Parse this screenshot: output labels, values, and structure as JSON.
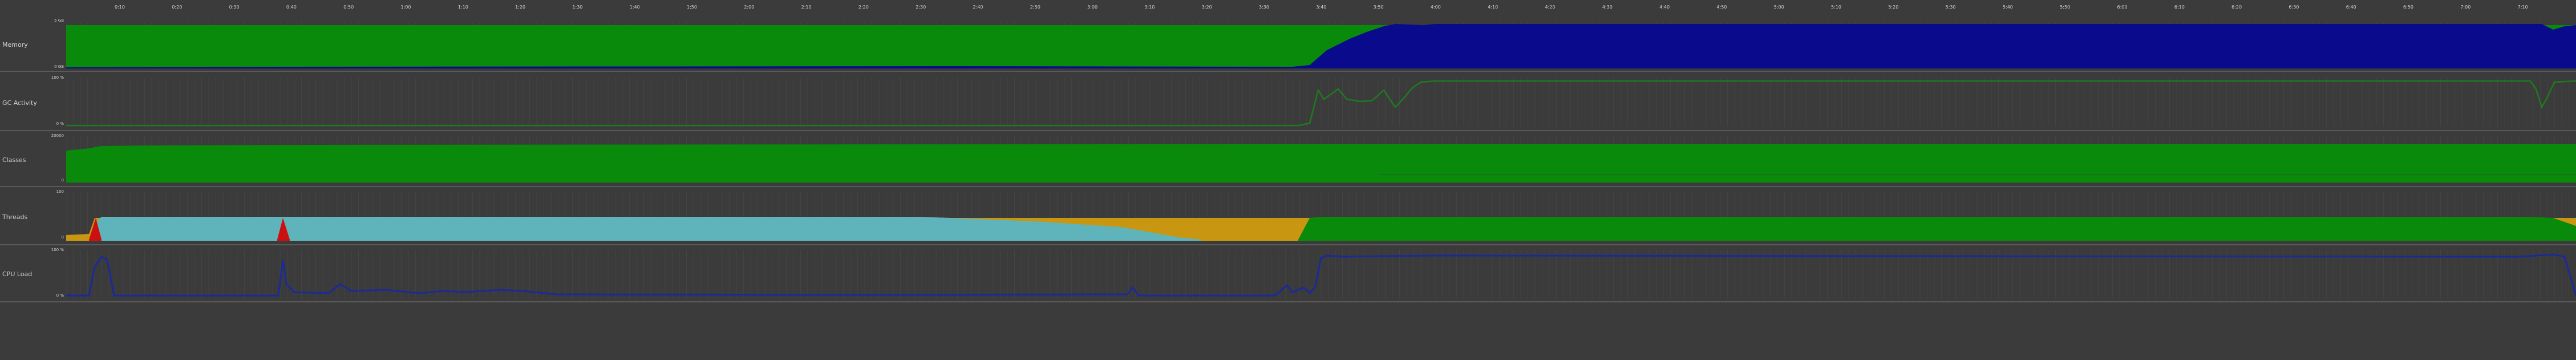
{
  "timeline": {
    "ticks": [
      "0:10",
      "0:20",
      "0:30",
      "0:40",
      "0:50",
      "1:00",
      "1:10",
      "1:20",
      "1:30",
      "1:40",
      "1:50",
      "2:00",
      "2:10",
      "2:20",
      "2:30",
      "2:40",
      "2:50",
      "3:00",
      "3:10",
      "3:20",
      "3:30",
      "3:40",
      "3:50",
      "4:00",
      "4:10",
      "4:20",
      "4:30",
      "4:40",
      "4:50",
      "5:00",
      "5:10",
      "5:20",
      "5:30",
      "5:40",
      "5:50",
      "6:00",
      "6:10",
      "6:20",
      "6:30",
      "6:40",
      "6:50",
      "7:00",
      "7:10"
    ]
  },
  "panels": [
    {
      "id": "memory",
      "label": "Memory",
      "axis_top": "5 GB",
      "axis_bottom": "0 GB"
    },
    {
      "id": "gc",
      "label": "GC Activity",
      "axis_top": "100 %",
      "axis_bottom": "0 %"
    },
    {
      "id": "classes",
      "label": "Classes",
      "axis_top": "20000",
      "axis_bottom": "0"
    },
    {
      "id": "threads",
      "label": "Threads",
      "axis_top": "100",
      "axis_bottom": "0"
    },
    {
      "id": "cpu",
      "label": "CPU Load",
      "axis_top": "100 %",
      "axis_bottom": "0 %"
    }
  ],
  "colors": {
    "background": "#3b3b3b",
    "grid": "#555555",
    "green": "#0a8a0a",
    "navy": "#0a0a8c",
    "orange": "#c89610",
    "cyan": "#5fb4bc",
    "red": "#cc1010",
    "gc_line": "#1f7a1f",
    "cpu_line": "#1a2a9a"
  }
}
